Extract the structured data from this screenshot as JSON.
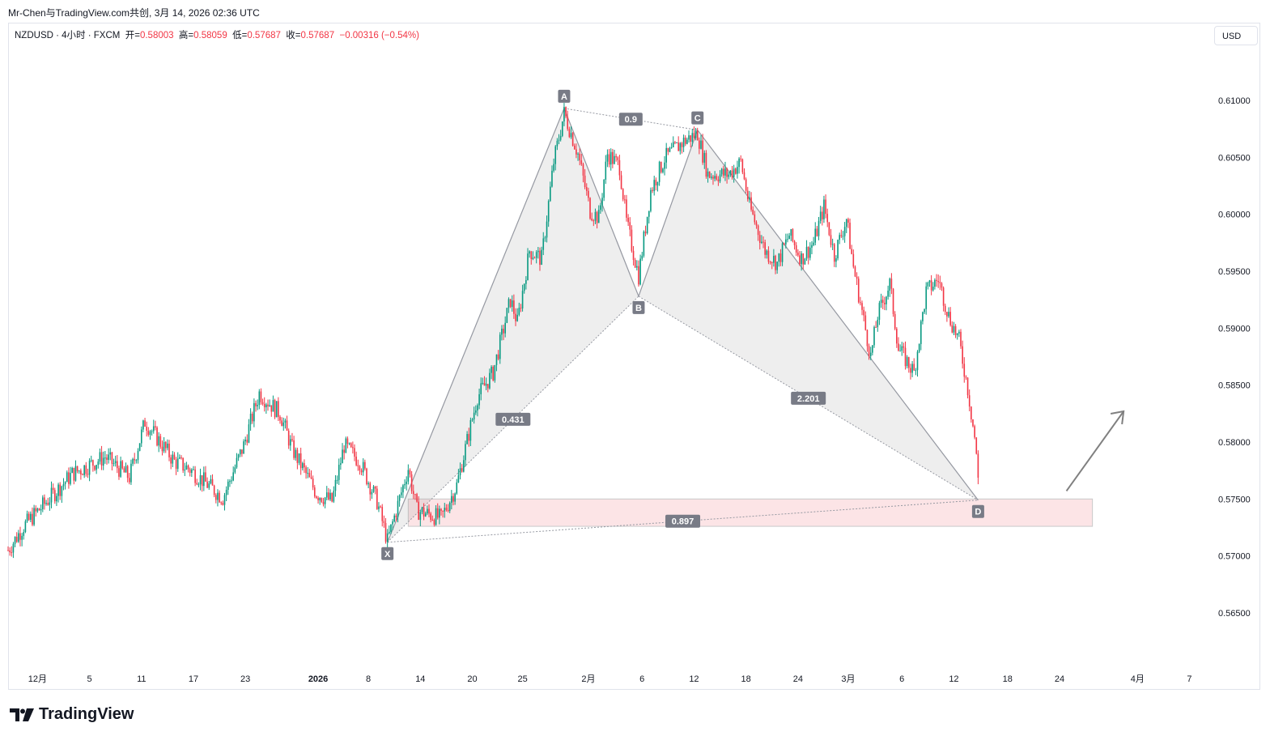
{
  "credit": "Mr-Chen与TradingView.com共创, 3月 14, 2026 02:36 UTC",
  "legend": {
    "symbol": "NZDUSD · 4小时 · FXCM",
    "o_label": "开=",
    "o": "0.58003",
    "h_label": "高=",
    "h": "0.58059",
    "l_label": "低=",
    "l": "0.57687",
    "c_label": "收=",
    "c": "0.57687",
    "change": "−0.00316 (−0.54%)"
  },
  "currency": "USD",
  "brand": "TradingView",
  "colors": {
    "up": "#089981",
    "down": "#f23645",
    "pattern": "#9598a1",
    "zone": "#fce4e6"
  },
  "chart_data": {
    "type": "candlestick",
    "title": "NZDUSD 4H",
    "ylim": [
      0.5625,
      0.6125
    ],
    "yticks": [
      "0.61000",
      "0.60500",
      "0.60000",
      "0.59500",
      "0.59000",
      "0.58500",
      "0.58000",
      "0.57500",
      "0.57000",
      "0.56500"
    ],
    "xticks": [
      {
        "label": "12月",
        "t": 17
      },
      {
        "label": "5",
        "t": 47
      },
      {
        "label": "11",
        "t": 77
      },
      {
        "label": "17",
        "t": 107
      },
      {
        "label": "23",
        "t": 137
      },
      {
        "label": "2026",
        "t": 179,
        "bold": true
      },
      {
        "label": "8",
        "t": 208
      },
      {
        "label": "14",
        "t": 238
      },
      {
        "label": "20",
        "t": 268
      },
      {
        "label": "25",
        "t": 297
      },
      {
        "label": "2月",
        "t": 335
      },
      {
        "label": "6",
        "t": 366
      },
      {
        "label": "12",
        "t": 396
      },
      {
        "label": "18",
        "t": 426
      },
      {
        "label": "24",
        "t": 456
      },
      {
        "label": "3月",
        "t": 485
      },
      {
        "label": "6",
        "t": 516
      },
      {
        "label": "12",
        "t": 546
      },
      {
        "label": "18",
        "t": 577
      },
      {
        "label": "24",
        "t": 607
      },
      {
        "label": "4月",
        "t": 652
      },
      {
        "label": "7",
        "t": 682
      }
    ],
    "bars": 561,
    "price_path": [
      [
        0,
        0.5705
      ],
      [
        9,
        0.5726
      ],
      [
        37,
        0.5772
      ],
      [
        56,
        0.5787
      ],
      [
        70,
        0.5769
      ],
      [
        79,
        0.5818
      ],
      [
        96,
        0.5783
      ],
      [
        105,
        0.5776
      ],
      [
        124,
        0.5751
      ],
      [
        136,
        0.5797
      ],
      [
        145,
        0.5843
      ],
      [
        157,
        0.5825
      ],
      [
        164,
        0.5794
      ],
      [
        178,
        0.5755
      ],
      [
        187,
        0.5748
      ],
      [
        194,
        0.5797
      ],
      [
        203,
        0.5783
      ],
      [
        213,
        0.5748
      ],
      [
        219,
        0.5713
      ],
      [
        231,
        0.5777
      ],
      [
        236,
        0.574
      ],
      [
        250,
        0.5733
      ],
      [
        259,
        0.5762
      ],
      [
        271,
        0.584
      ],
      [
        280,
        0.5861
      ],
      [
        290,
        0.5925
      ],
      [
        294,
        0.5905
      ],
      [
        301,
        0.5968
      ],
      [
        308,
        0.5961
      ],
      [
        315,
        0.6046
      ],
      [
        321,
        0.6089
      ],
      [
        329,
        0.6053
      ],
      [
        336,
        0.6003
      ],
      [
        341,
        0.5997
      ],
      [
        346,
        0.6053
      ],
      [
        353,
        0.6042
      ],
      [
        357,
        0.5993
      ],
      [
        364,
        0.5946
      ],
      [
        371,
        0.6021
      ],
      [
        379,
        0.6049
      ],
      [
        390,
        0.6064
      ],
      [
        398,
        0.6071
      ],
      [
        404,
        0.6035
      ],
      [
        416,
        0.6035
      ],
      [
        423,
        0.6046
      ],
      [
        428,
        0.6007
      ],
      [
        437,
        0.5968
      ],
      [
        444,
        0.5957
      ],
      [
        451,
        0.5982
      ],
      [
        458,
        0.5961
      ],
      [
        465,
        0.5975
      ],
      [
        471,
        0.6007
      ],
      [
        477,
        0.5964
      ],
      [
        484,
        0.5996
      ],
      [
        488,
        0.5954
      ],
      [
        498,
        0.5875
      ],
      [
        502,
        0.5911
      ],
      [
        509,
        0.5939
      ],
      [
        514,
        0.5882
      ],
      [
        523,
        0.5861
      ],
      [
        530,
        0.5932
      ],
      [
        537,
        0.5943
      ],
      [
        543,
        0.5911
      ],
      [
        549,
        0.5889
      ],
      [
        554,
        0.5847
      ],
      [
        558,
        0.5804
      ],
      [
        560,
        0.57687
      ]
    ],
    "pattern": {
      "points": [
        {
          "label": "X",
          "t": 219,
          "p": 0.5712
        },
        {
          "label": "A",
          "t": 321,
          "p": 0.6093
        },
        {
          "label": "B",
          "t": 364,
          "p": 0.5928
        },
        {
          "label": "C",
          "t": 398,
          "p": 0.6074
        },
        {
          "label": "D",
          "t": 560,
          "p": 0.5749
        }
      ],
      "ratios": [
        {
          "label": "0.431",
          "from": "X",
          "to": "B"
        },
        {
          "label": "0.9",
          "from": "A",
          "to": "C"
        },
        {
          "label": "2.201",
          "from": "B",
          "to": "D"
        },
        {
          "label": "0.897",
          "from": "X",
          "to": "D"
        }
      ]
    },
    "zone": {
      "t0": 231,
      "t1": 626,
      "p0": 0.5726,
      "p1": 0.575
    },
    "arrow": {
      "t0": 611,
      "p0": 0.5757,
      "t1": 644,
      "p1": 0.5827
    }
  }
}
